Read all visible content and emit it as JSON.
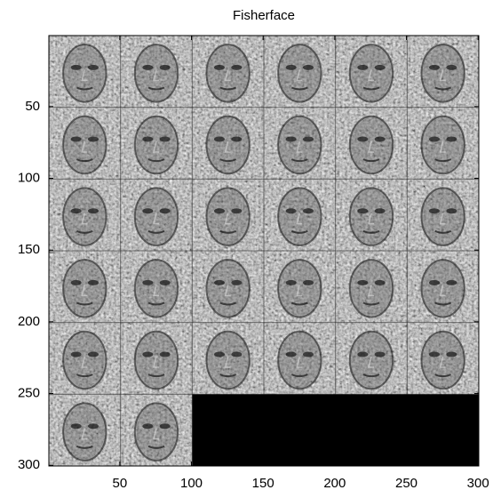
{
  "chart_data": {
    "type": "image",
    "title": "Fisherface",
    "xlim": [
      0.5,
      300.5
    ],
    "ylim": [
      0.5,
      300.5
    ],
    "y_direction": "reverse",
    "xticks": [
      50,
      100,
      150,
      200,
      250,
      300
    ],
    "yticks": [
      50,
      100,
      150,
      200,
      250,
      300
    ],
    "colormap": "gray"
  }
}
